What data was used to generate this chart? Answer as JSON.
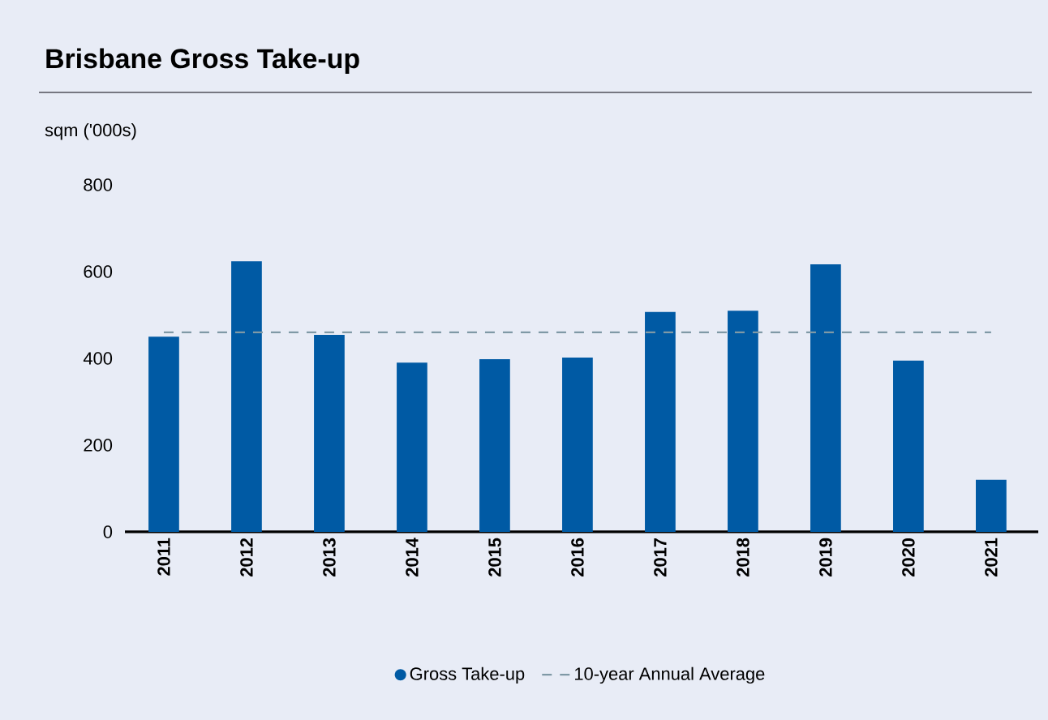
{
  "chart_data": {
    "type": "bar",
    "title": "Brisbane Gross Take-up",
    "ylabel": "sqm ('000s)",
    "categories": [
      "2011",
      "2012",
      "2013",
      "2014",
      "2015",
      "2016",
      "2017",
      "2018",
      "2019",
      "2020",
      "2021"
    ],
    "series": [
      {
        "name": "Gross Take-up",
        "color": "#005aa4",
        "values": [
          450,
          624,
          454,
          390,
          398,
          402,
          507,
          510,
          617,
          395,
          120
        ]
      }
    ],
    "ylim": [
      0,
      800
    ],
    "yticks": [
      0,
      200,
      400,
      600,
      800
    ],
    "ref_lines": [
      {
        "axis": "y",
        "value": 460,
        "label": "10-year Annual Average",
        "color": "#7f99a6",
        "line_style": "dashed"
      }
    ],
    "grid": false,
    "legend": "bottom"
  }
}
